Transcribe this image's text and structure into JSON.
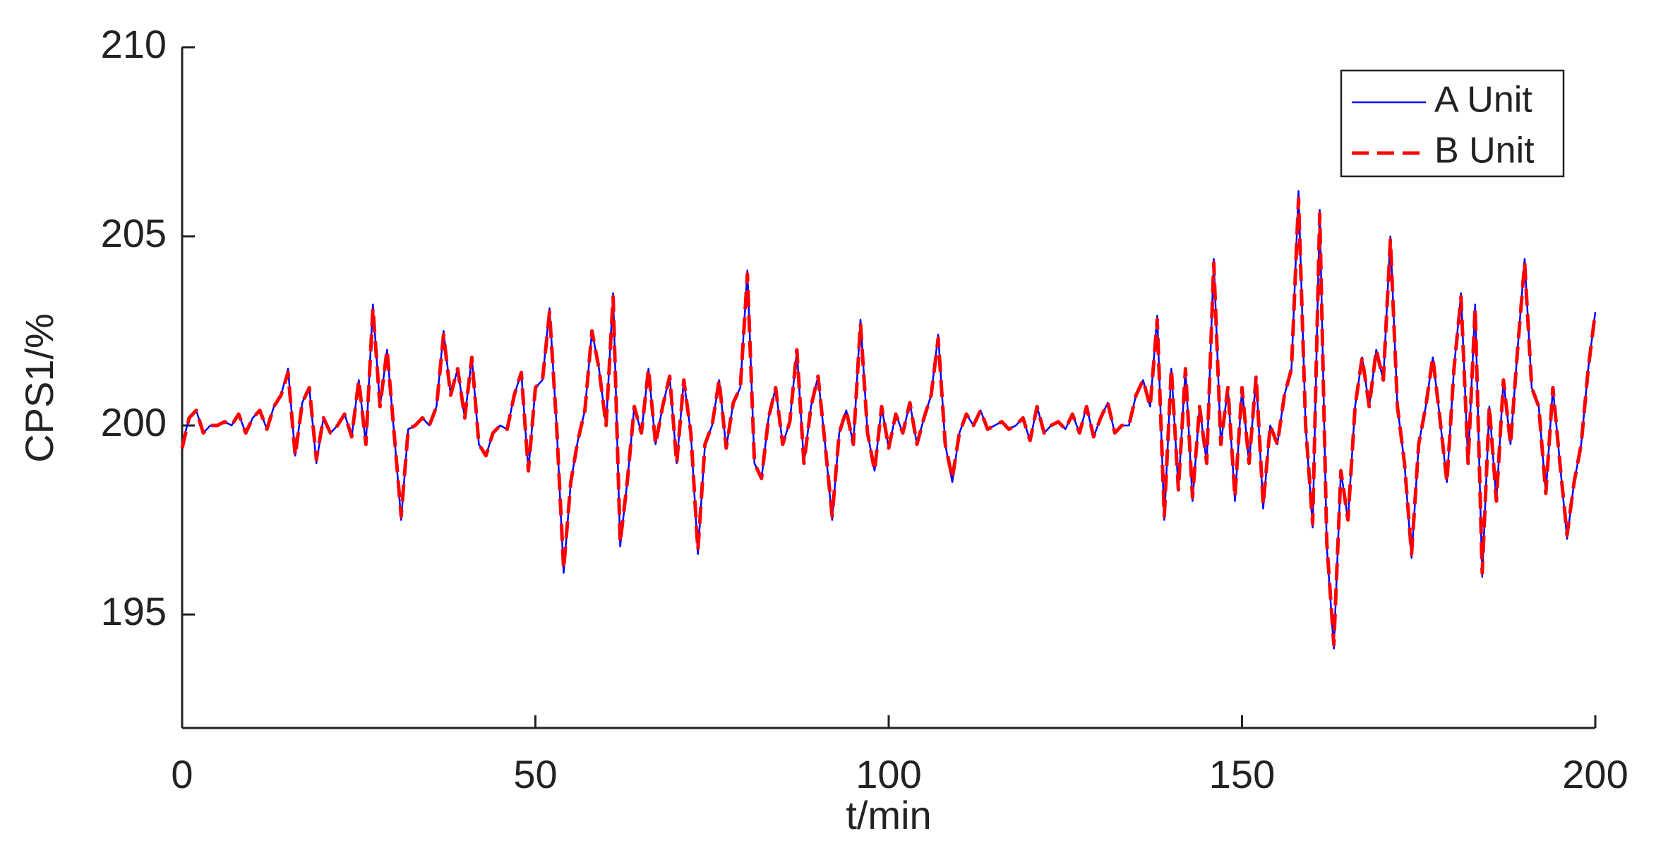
{
  "chart_data": {
    "type": "line",
    "xlabel": "t/min",
    "ylabel": "CPS1/%",
    "xlim": [
      0,
      200
    ],
    "xticks": [
      0,
      50,
      100,
      150,
      200
    ],
    "ylim": [
      192,
      210
    ],
    "yticks": [
      195,
      200,
      205,
      210
    ],
    "grid": false,
    "legend": "upper right",
    "x": [
      0,
      1,
      2,
      3,
      4,
      5,
      6,
      7,
      8,
      9,
      10,
      11,
      12,
      13,
      14,
      15,
      16,
      17,
      18,
      19,
      20,
      21,
      22,
      23,
      24,
      25,
      26,
      27,
      28,
      29,
      30,
      31,
      32,
      33,
      34,
      35,
      36,
      37,
      38,
      39,
      40,
      41,
      42,
      43,
      44,
      45,
      46,
      47,
      48,
      49,
      50,
      51,
      52,
      53,
      54,
      55,
      56,
      57,
      58,
      59,
      60,
      61,
      62,
      63,
      64,
      65,
      66,
      67,
      68,
      69,
      70,
      71,
      72,
      73,
      74,
      75,
      76,
      77,
      78,
      79,
      80,
      81,
      82,
      83,
      84,
      85,
      86,
      87,
      88,
      89,
      90,
      91,
      92,
      93,
      94,
      95,
      96,
      97,
      98,
      99,
      100,
      101,
      102,
      103,
      104,
      105,
      106,
      107,
      108,
      109,
      110,
      111,
      112,
      113,
      114,
      115,
      116,
      117,
      118,
      119,
      120,
      121,
      122,
      123,
      124,
      125,
      126,
      127,
      128,
      129,
      130,
      131,
      132,
      133,
      134,
      135,
      136,
      137,
      138,
      139,
      140,
      141,
      142,
      143,
      144,
      145,
      146,
      147,
      148,
      149,
      150,
      151,
      152,
      153,
      154,
      155,
      156,
      157,
      158,
      159,
      160,
      161,
      162,
      163,
      164,
      165,
      166,
      167,
      168,
      169,
      170,
      171,
      172,
      173,
      174,
      175,
      176,
      177,
      178,
      179,
      180,
      181,
      182,
      183,
      184,
      185,
      186,
      187,
      188,
      189,
      190,
      191,
      192,
      193,
      194,
      195,
      196,
      197,
      198,
      199,
      200
    ],
    "series": [
      {
        "name": "A Unit",
        "color": "#0000ff",
        "linestyle": "solid",
        "values": [
          199.5,
          200.2,
          200.4,
          199.8,
          200.0,
          200.0,
          200.1,
          200.0,
          200.3,
          199.8,
          200.2,
          200.4,
          199.9,
          200.5,
          200.8,
          201.5,
          199.2,
          200.6,
          201.0,
          199.0,
          200.2,
          199.8,
          200.0,
          200.3,
          199.7,
          201.2,
          199.5,
          203.2,
          200.5,
          202.0,
          199.8,
          197.5,
          199.9,
          200.0,
          200.2,
          200.0,
          200.5,
          202.5,
          200.8,
          201.5,
          200.2,
          201.8,
          199.5,
          199.2,
          199.8,
          200.0,
          199.9,
          200.8,
          201.4,
          198.8,
          201.0,
          201.2,
          203.1,
          200.0,
          196.1,
          198.5,
          199.6,
          200.4,
          202.5,
          201.5,
          200.0,
          203.5,
          196.8,
          198.5,
          200.5,
          199.8,
          201.5,
          199.5,
          200.5,
          201.3,
          199.0,
          201.2,
          199.8,
          196.6,
          199.5,
          200.0,
          201.2,
          199.4,
          200.6,
          201.0,
          204.1,
          199.0,
          198.6,
          200.2,
          201.0,
          199.5,
          200.1,
          202.0,
          199.0,
          200.5,
          201.3,
          199.5,
          197.5,
          199.8,
          200.4,
          199.5,
          202.8,
          199.8,
          198.8,
          200.5,
          199.4,
          200.3,
          199.8,
          200.6,
          199.5,
          200.2,
          200.8,
          202.4,
          199.5,
          198.5,
          199.8,
          200.3,
          200.0,
          200.4,
          199.9,
          200.0,
          200.1,
          199.9,
          200.0,
          200.2,
          199.6,
          200.5,
          199.8,
          200.0,
          200.1,
          199.9,
          200.3,
          199.8,
          200.5,
          199.7,
          200.2,
          200.6,
          199.8,
          200.0,
          200.0,
          200.8,
          201.2,
          200.5,
          202.9,
          197.5,
          201.5,
          198.3,
          201.5,
          198.0,
          200.5,
          199.0,
          204.4,
          199.5,
          201.0,
          198.0,
          201.0,
          199.0,
          201.3,
          197.8,
          200.0,
          199.5,
          200.8,
          201.5,
          206.2,
          200.0,
          197.3,
          205.7,
          196.8,
          194.1,
          198.8,
          197.5,
          200.5,
          201.8,
          200.5,
          202.0,
          201.2,
          205.0,
          200.5,
          199.0,
          196.5,
          199.5,
          200.5,
          201.8,
          200.2,
          198.5,
          201.5,
          203.5,
          199.0,
          203.2,
          196.0,
          200.5,
          198.0,
          201.2,
          199.5,
          202.0,
          204.4,
          201.0,
          200.5,
          198.2,
          201.0,
          199.0,
          197.0,
          198.5,
          199.5,
          201.5,
          203.0
        ]
      },
      {
        "name": "B Unit",
        "color": "#ff0000",
        "linestyle": "dashed",
        "values": [
          199.4,
          200.2,
          200.4,
          199.8,
          200.0,
          200.0,
          200.1,
          200.0,
          200.3,
          199.8,
          200.2,
          200.4,
          199.9,
          200.5,
          200.8,
          201.4,
          199.2,
          200.6,
          201.0,
          199.1,
          200.2,
          199.8,
          200.0,
          200.3,
          199.7,
          201.2,
          199.5,
          203.1,
          200.5,
          202.0,
          199.8,
          197.6,
          199.9,
          200.0,
          200.2,
          200.0,
          200.5,
          202.4,
          200.8,
          201.5,
          200.2,
          201.8,
          199.5,
          199.2,
          199.8,
          200.0,
          199.9,
          200.8,
          201.4,
          198.8,
          201.0,
          201.2,
          203.0,
          200.0,
          196.2,
          198.5,
          199.6,
          200.4,
          202.5,
          201.5,
          200.0,
          203.4,
          196.9,
          198.5,
          200.5,
          199.8,
          201.5,
          199.5,
          200.5,
          201.3,
          199.0,
          201.2,
          199.8,
          196.7,
          199.5,
          200.0,
          201.2,
          199.4,
          200.6,
          201.0,
          204.0,
          199.0,
          198.6,
          200.2,
          201.0,
          199.5,
          200.1,
          202.0,
          199.0,
          200.5,
          201.3,
          199.5,
          197.6,
          199.8,
          200.4,
          199.5,
          202.7,
          199.8,
          198.8,
          200.5,
          199.4,
          200.3,
          199.8,
          200.6,
          199.5,
          200.2,
          200.8,
          202.3,
          199.5,
          198.6,
          199.8,
          200.3,
          200.0,
          200.4,
          199.9,
          200.0,
          200.1,
          199.9,
          200.0,
          200.2,
          199.6,
          200.5,
          199.8,
          200.0,
          200.1,
          199.9,
          200.3,
          199.8,
          200.5,
          199.7,
          200.2,
          200.6,
          199.8,
          200.0,
          200.0,
          200.8,
          201.2,
          200.5,
          202.8,
          197.6,
          201.5,
          198.3,
          201.5,
          198.1,
          200.5,
          199.0,
          204.3,
          199.5,
          201.0,
          198.1,
          201.0,
          199.0,
          201.3,
          197.9,
          200.0,
          199.5,
          200.8,
          201.5,
          206.0,
          200.0,
          197.4,
          205.6,
          196.9,
          194.2,
          198.8,
          197.5,
          200.5,
          201.8,
          200.5,
          202.0,
          201.2,
          204.9,
          200.5,
          199.0,
          196.6,
          199.5,
          200.5,
          201.8,
          200.2,
          198.5,
          201.5,
          203.4,
          199.0,
          203.1,
          196.1,
          200.5,
          198.0,
          201.2,
          199.5,
          202.0,
          204.3,
          201.0,
          200.5,
          198.2,
          201.0,
          199.0,
          197.1,
          198.5,
          199.5,
          201.5,
          203.0
        ]
      }
    ]
  }
}
